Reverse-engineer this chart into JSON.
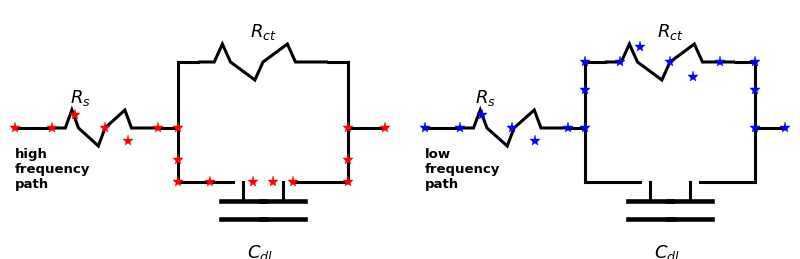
{
  "bg_color": "#ffffff",
  "left_label": "high\nfrequency\npath",
  "right_label": "low\nfrequency\npath",
  "Rs_label": "$R_s$",
  "Rct_label": "$R_{ct}$",
  "Cdl_label": "$C_{dl}$",
  "high_freq_color": "#ff0000",
  "low_freq_color": "#0000ff",
  "lw": 2.2,
  "fig_w": 8.0,
  "fig_h": 2.59,
  "dpi": 100
}
